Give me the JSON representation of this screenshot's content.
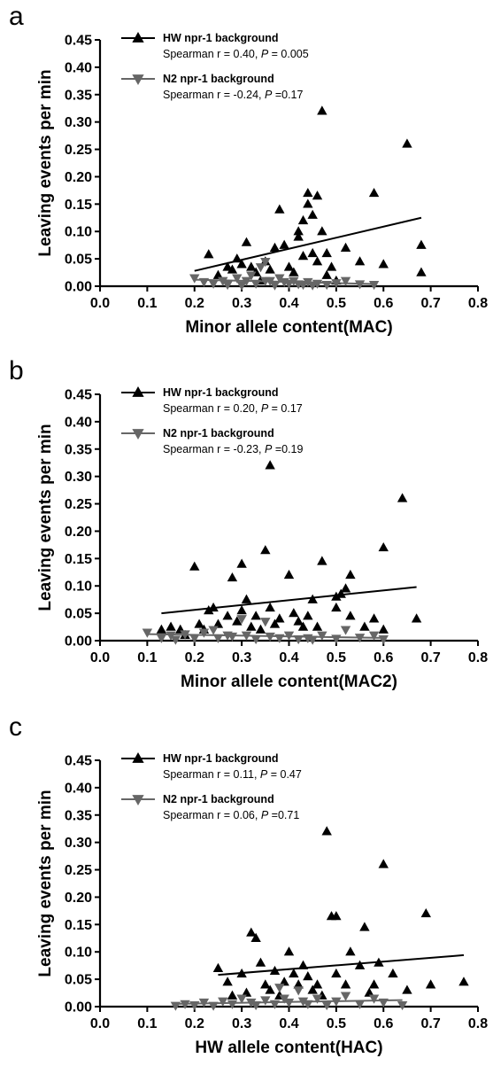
{
  "chart_data": [
    {
      "type": "scatter",
      "panel": "a",
      "xlabel": "Minor allele content(MAC)",
      "ylabel": "Leaving events per min",
      "xlim": [
        0.0,
        0.8
      ],
      "ylim": [
        0.0,
        0.45
      ],
      "xticks": [
        "0.0",
        "0.1",
        "0.2",
        "0.3",
        "0.4",
        "0.5",
        "0.6",
        "0.7",
        "0.8"
      ],
      "yticks": [
        "0.00",
        "0.05",
        "0.10",
        "0.15",
        "0.20",
        "0.25",
        "0.30",
        "0.35",
        "0.40",
        "0.45"
      ],
      "grid": false,
      "legend_placement": "top-left",
      "series": [
        {
          "name": "HW npr-1 background",
          "stat_prefix": "Spearman r = 0.40, ",
          "stat_p_label": "P",
          "stat_p_value": " = 0.005",
          "marker": "triangle-up",
          "color": "#000000",
          "trend": {
            "x": [
              0.2,
              0.68
            ],
            "y": [
              0.028,
              0.125
            ]
          },
          "points": [
            [
              0.23,
              0.058
            ],
            [
              0.25,
              0.02
            ],
            [
              0.27,
              0.035
            ],
            [
              0.28,
              0.03
            ],
            [
              0.29,
              0.05
            ],
            [
              0.3,
              0.04
            ],
            [
              0.31,
              0.08
            ],
            [
              0.32,
              0.035
            ],
            [
              0.33,
              0.025
            ],
            [
              0.34,
              0.01
            ],
            [
              0.35,
              0.045
            ],
            [
              0.36,
              0.03
            ],
            [
              0.37,
              0.07
            ],
            [
              0.38,
              0.14
            ],
            [
              0.39,
              0.075
            ],
            [
              0.4,
              0.035
            ],
            [
              0.41,
              0.025
            ],
            [
              0.42,
              0.09
            ],
            [
              0.42,
              0.1
            ],
            [
              0.43,
              0.12
            ],
            [
              0.43,
              0.055
            ],
            [
              0.44,
              0.15
            ],
            [
              0.44,
              0.17
            ],
            [
              0.45,
              0.13
            ],
            [
              0.45,
              0.06
            ],
            [
              0.46,
              0.045
            ],
            [
              0.46,
              0.165
            ],
            [
              0.47,
              0.32
            ],
            [
              0.47,
              0.1
            ],
            [
              0.48,
              0.06
            ],
            [
              0.48,
              0.02
            ],
            [
              0.49,
              0.035
            ],
            [
              0.5,
              0.01
            ],
            [
              0.52,
              0.07
            ],
            [
              0.55,
              0.045
            ],
            [
              0.58,
              0.17
            ],
            [
              0.6,
              0.04
            ],
            [
              0.65,
              0.26
            ],
            [
              0.68,
              0.075
            ],
            [
              0.68,
              0.025
            ]
          ]
        },
        {
          "name": "N2 npr-1 background",
          "stat_prefix": "Spearman r = -0.24, ",
          "stat_p_label": "P",
          "stat_p_value": " =0.17",
          "marker": "triangle-down",
          "color": "#666666",
          "trend": {
            "x": [
              0.2,
              0.58
            ],
            "y": [
              0.012,
              0.004
            ]
          },
          "points": [
            [
              0.2,
              0.015
            ],
            [
              0.22,
              0.008
            ],
            [
              0.24,
              0.005
            ],
            [
              0.26,
              0.01
            ],
            [
              0.27,
              0.003
            ],
            [
              0.29,
              0.015
            ],
            [
              0.3,
              0.002
            ],
            [
              0.31,
              0.01
            ],
            [
              0.32,
              0.02
            ],
            [
              0.33,
              0.005
            ],
            [
              0.34,
              0.035
            ],
            [
              0.35,
              0.045
            ],
            [
              0.35,
              0.01
            ],
            [
              0.36,
              0.01
            ],
            [
              0.37,
              0.002
            ],
            [
              0.38,
              0.015
            ],
            [
              0.39,
              0.008
            ],
            [
              0.4,
              0.005
            ],
            [
              0.41,
              0.01
            ],
            [
              0.42,
              0.004
            ],
            [
              0.43,
              0.003
            ],
            [
              0.44,
              0.008
            ],
            [
              0.45,
              0.002
            ],
            [
              0.46,
              0.005
            ],
            [
              0.48,
              0.003
            ],
            [
              0.5,
              0.006
            ],
            [
              0.52,
              0.01
            ],
            [
              0.55,
              0.004
            ],
            [
              0.58,
              0.003
            ]
          ]
        }
      ]
    },
    {
      "type": "scatter",
      "panel": "b",
      "xlabel": "Minor allele content(MAC2)",
      "ylabel": "Leaving events per min",
      "xlim": [
        0.0,
        0.8
      ],
      "ylim": [
        0.0,
        0.45
      ],
      "xticks": [
        "0.0",
        "0.1",
        "0.2",
        "0.3",
        "0.4",
        "0.5",
        "0.6",
        "0.7",
        "0.8"
      ],
      "yticks": [
        "0.00",
        "0.05",
        "0.10",
        "0.15",
        "0.20",
        "0.25",
        "0.30",
        "0.35",
        "0.40",
        "0.45"
      ],
      "grid": false,
      "legend_placement": "top-left",
      "series": [
        {
          "name": "HW npr-1 background",
          "stat_prefix": "Spearman r = 0.20, ",
          "stat_p_label": "P",
          "stat_p_value": " = 0.17",
          "marker": "triangle-up",
          "color": "#000000",
          "trend": {
            "x": [
              0.13,
              0.67
            ],
            "y": [
              0.05,
              0.098
            ]
          },
          "points": [
            [
              0.13,
              0.02
            ],
            [
              0.15,
              0.025
            ],
            [
              0.17,
              0.02
            ],
            [
              0.18,
              0.01
            ],
            [
              0.2,
              0.135
            ],
            [
              0.21,
              0.03
            ],
            [
              0.22,
              0.02
            ],
            [
              0.23,
              0.055
            ],
            [
              0.24,
              0.06
            ],
            [
              0.25,
              0.03
            ],
            [
              0.27,
              0.045
            ],
            [
              0.28,
              0.115
            ],
            [
              0.29,
              0.035
            ],
            [
              0.3,
              0.14
            ],
            [
              0.3,
              0.055
            ],
            [
              0.31,
              0.075
            ],
            [
              0.32,
              0.025
            ],
            [
              0.33,
              0.045
            ],
            [
              0.34,
              0.02
            ],
            [
              0.35,
              0.165
            ],
            [
              0.36,
              0.32
            ],
            [
              0.36,
              0.06
            ],
            [
              0.37,
              0.03
            ],
            [
              0.38,
              0.04
            ],
            [
              0.4,
              0.12
            ],
            [
              0.41,
              0.05
            ],
            [
              0.42,
              0.035
            ],
            [
              0.43,
              0.025
            ],
            [
              0.44,
              0.045
            ],
            [
              0.45,
              0.075
            ],
            [
              0.46,
              0.025
            ],
            [
              0.47,
              0.145
            ],
            [
              0.5,
              0.08
            ],
            [
              0.5,
              0.06
            ],
            [
              0.51,
              0.085
            ],
            [
              0.52,
              0.095
            ],
            [
              0.53,
              0.12
            ],
            [
              0.53,
              0.045
            ],
            [
              0.56,
              0.025
            ],
            [
              0.58,
              0.04
            ],
            [
              0.6,
              0.17
            ],
            [
              0.6,
              0.02
            ],
            [
              0.64,
              0.26
            ],
            [
              0.67,
              0.04
            ]
          ]
        },
        {
          "name": "N2 npr-1 background",
          "stat_prefix": "Spearman r = -0.23, ",
          "stat_p_label": "P",
          "stat_p_value": " =0.19",
          "marker": "triangle-down",
          "color": "#666666",
          "trend": {
            "x": [
              0.1,
              0.6
            ],
            "y": [
              0.012,
              0.005
            ]
          },
          "points": [
            [
              0.1,
              0.015
            ],
            [
              0.13,
              0.005
            ],
            [
              0.15,
              0.01
            ],
            [
              0.16,
              0.002
            ],
            [
              0.18,
              0.012
            ],
            [
              0.2,
              0.005
            ],
            [
              0.22,
              0.015
            ],
            [
              0.24,
              0.02
            ],
            [
              0.25,
              0.005
            ],
            [
              0.27,
              0.01
            ],
            [
              0.28,
              0.008
            ],
            [
              0.3,
              0.04
            ],
            [
              0.31,
              0.01
            ],
            [
              0.33,
              0.003
            ],
            [
              0.35,
              0.035
            ],
            [
              0.36,
              0.008
            ],
            [
              0.38,
              0.005
            ],
            [
              0.4,
              0.01
            ],
            [
              0.42,
              0.003
            ],
            [
              0.44,
              0.005
            ],
            [
              0.45,
              0.002
            ],
            [
              0.47,
              0.01
            ],
            [
              0.5,
              0.004
            ],
            [
              0.52,
              0.02
            ],
            [
              0.55,
              0.006
            ],
            [
              0.58,
              0.01
            ],
            [
              0.6,
              0.003
            ]
          ]
        }
      ]
    },
    {
      "type": "scatter",
      "panel": "c",
      "xlabel": "HW allele content(HAC)",
      "ylabel": "Leaving events per min",
      "xlim": [
        0.0,
        0.8
      ],
      "ylim": [
        0.0,
        0.45
      ],
      "xticks": [
        "0.0",
        "0.1",
        "0.2",
        "0.3",
        "0.4",
        "0.5",
        "0.6",
        "0.7",
        "0.8"
      ],
      "yticks": [
        "0.00",
        "0.05",
        "0.10",
        "0.15",
        "0.20",
        "0.25",
        "0.30",
        "0.35",
        "0.40",
        "0.45"
      ],
      "grid": false,
      "legend_placement": "top-left",
      "series": [
        {
          "name": "HW npr-1 background",
          "stat_prefix": "Spearman r = 0.11, ",
          "stat_p_label": "P",
          "stat_p_value": " = 0.47",
          "marker": "triangle-up",
          "color": "#000000",
          "trend": {
            "x": [
              0.25,
              0.77
            ],
            "y": [
              0.058,
              0.094
            ]
          },
          "points": [
            [
              0.25,
              0.07
            ],
            [
              0.27,
              0.045
            ],
            [
              0.28,
              0.02
            ],
            [
              0.3,
              0.06
            ],
            [
              0.31,
              0.025
            ],
            [
              0.32,
              0.135
            ],
            [
              0.33,
              0.125
            ],
            [
              0.34,
              0.08
            ],
            [
              0.35,
              0.04
            ],
            [
              0.36,
              0.03
            ],
            [
              0.37,
              0.065
            ],
            [
              0.38,
              0.02
            ],
            [
              0.39,
              0.045
            ],
            [
              0.4,
              0.1
            ],
            [
              0.41,
              0.06
            ],
            [
              0.42,
              0.04
            ],
            [
              0.43,
              0.075
            ],
            [
              0.44,
              0.055
            ],
            [
              0.45,
              0.03
            ],
            [
              0.46,
              0.04
            ],
            [
              0.47,
              0.02
            ],
            [
              0.48,
              0.32
            ],
            [
              0.49,
              0.165
            ],
            [
              0.5,
              0.165
            ],
            [
              0.5,
              0.06
            ],
            [
              0.52,
              0.04
            ],
            [
              0.53,
              0.1
            ],
            [
              0.55,
              0.075
            ],
            [
              0.56,
              0.145
            ],
            [
              0.57,
              0.025
            ],
            [
              0.58,
              0.04
            ],
            [
              0.59,
              0.08
            ],
            [
              0.6,
              0.26
            ],
            [
              0.62,
              0.06
            ],
            [
              0.65,
              0.03
            ],
            [
              0.69,
              0.17
            ],
            [
              0.7,
              0.04
            ],
            [
              0.77,
              0.045
            ]
          ]
        },
        {
          "name": "N2 npr-1 background",
          "stat_prefix": "Spearman r = 0.06, ",
          "stat_p_label": "P",
          "stat_p_value": " =0.71",
          "marker": "triangle-down",
          "color": "#666666",
          "trend": {
            "x": [
              0.16,
              0.64
            ],
            "y": [
              0.005,
              0.012
            ]
          },
          "points": [
            [
              0.16,
              0.002
            ],
            [
              0.18,
              0.005
            ],
            [
              0.2,
              0.003
            ],
            [
              0.22,
              0.008
            ],
            [
              0.24,
              0.002
            ],
            [
              0.26,
              0.01
            ],
            [
              0.28,
              0.005
            ],
            [
              0.3,
              0.015
            ],
            [
              0.32,
              0.008
            ],
            [
              0.33,
              0.003
            ],
            [
              0.35,
              0.012
            ],
            [
              0.37,
              0.005
            ],
            [
              0.38,
              0.035
            ],
            [
              0.39,
              0.015
            ],
            [
              0.4,
              0.008
            ],
            [
              0.42,
              0.03
            ],
            [
              0.43,
              0.01
            ],
            [
              0.44,
              0.005
            ],
            [
              0.46,
              0.015
            ],
            [
              0.48,
              0.003
            ],
            [
              0.5,
              0.01
            ],
            [
              0.52,
              0.02
            ],
            [
              0.55,
              0.005
            ],
            [
              0.58,
              0.015
            ],
            [
              0.6,
              0.008
            ],
            [
              0.64,
              0.003
            ]
          ]
        }
      ]
    }
  ]
}
